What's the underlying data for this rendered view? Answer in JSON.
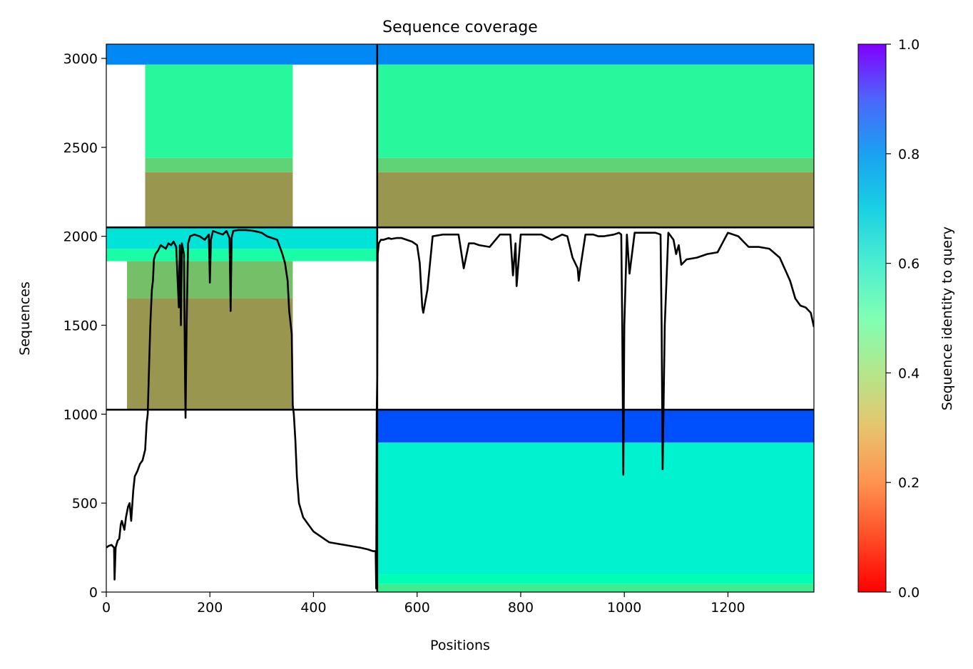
{
  "chart_data": {
    "type": "heatmap",
    "title": "Sequence coverage",
    "xlabel": "Positions",
    "ylabel": "Sequences",
    "xlim": [
      0,
      1366
    ],
    "ylim": [
      0,
      3080
    ],
    "x_ticks": [
      {
        "value": 0,
        "label": "0"
      },
      {
        "value": 200,
        "label": "200"
      },
      {
        "value": 400,
        "label": "400"
      },
      {
        "value": 600,
        "label": "600"
      },
      {
        "value": 800,
        "label": "800"
      },
      {
        "value": 1000,
        "label": "1000"
      },
      {
        "value": 1200,
        "label": "1200"
      }
    ],
    "y_ticks": [
      {
        "value": 0,
        "label": "0"
      },
      {
        "value": 500,
        "label": "500"
      },
      {
        "value": 1000,
        "label": "1000"
      },
      {
        "value": 1500,
        "label": "1500"
      },
      {
        "value": 2000,
        "label": "2000"
      },
      {
        "value": 2500,
        "label": "2500"
      },
      {
        "value": 3000,
        "label": "3000"
      }
    ],
    "colorbar": {
      "label": "Sequence identity to query",
      "range": [
        0,
        1
      ],
      "colormap": "rainbow_r",
      "ticks": [
        {
          "value": 0.0,
          "label": "0.0"
        },
        {
          "value": 0.2,
          "label": "0.2"
        },
        {
          "value": 0.4,
          "label": "0.4"
        },
        {
          "value": 0.6,
          "label": "0.6"
        },
        {
          "value": 0.8,
          "label": "0.8"
        },
        {
          "value": 1.0,
          "label": "1.0"
        }
      ]
    },
    "block_divisions": {
      "x": [
        523
      ],
      "y": [
        1025,
        2050
      ]
    },
    "coverage_blocks": [
      {
        "x": [
          0,
          523
        ],
        "y": [
          2965,
          3080
        ],
        "identity": 0.82,
        "note": "sparse-left"
      },
      {
        "x": [
          523,
          1366
        ],
        "y": [
          2965,
          3080
        ],
        "identity": 0.82
      },
      {
        "x": [
          523,
          1366
        ],
        "y": [
          2440,
          2965
        ],
        "identity": 0.42
      },
      {
        "x": [
          523,
          1366
        ],
        "y": [
          2360,
          2440
        ],
        "identity": 0.31
      },
      {
        "x": [
          523,
          1366
        ],
        "y": [
          2050,
          2360
        ],
        "identity": 0.2
      },
      {
        "x": [
          75,
          360
        ],
        "y": [
          2440,
          2965
        ],
        "identity": 0.42
      },
      {
        "x": [
          75,
          360
        ],
        "y": [
          2360,
          2440
        ],
        "identity": 0.31
      },
      {
        "x": [
          75,
          360
        ],
        "y": [
          2050,
          2360
        ],
        "identity": 0.2
      },
      {
        "x": [
          0,
          523
        ],
        "y": [
          1930,
          2050
        ],
        "identity": 0.65
      },
      {
        "x": [
          0,
          523
        ],
        "y": [
          1860,
          1930
        ],
        "identity": 0.45
      },
      {
        "x": [
          40,
          360
        ],
        "y": [
          1650,
          1860
        ],
        "identity": 0.27
      },
      {
        "x": [
          40,
          360
        ],
        "y": [
          1025,
          1650
        ],
        "identity": 0.2
      },
      {
        "x": [
          523,
          1366
        ],
        "y": [
          840,
          1025
        ],
        "identity": 0.9
      },
      {
        "x": [
          523,
          1366
        ],
        "y": [
          100,
          840
        ],
        "identity": 0.6
      },
      {
        "x": [
          523,
          1366
        ],
        "y": [
          45,
          100
        ],
        "identity": 0.5
      },
      {
        "x": [
          523,
          1366
        ],
        "y": [
          0,
          45
        ],
        "identity": 0.38
      }
    ],
    "coverage_line": {
      "x": [
        0,
        5,
        10,
        15,
        16,
        18,
        20,
        22,
        25,
        28,
        30,
        35,
        38,
        42,
        45,
        48,
        52,
        55,
        60,
        65,
        70,
        75,
        78,
        80,
        82,
        85,
        88,
        90,
        92,
        95,
        100,
        105,
        110,
        115,
        120,
        125,
        130,
        135,
        140,
        142,
        144,
        146,
        150,
        152,
        153,
        155,
        158,
        162,
        170,
        180,
        190,
        198,
        200,
        202,
        206,
        215,
        225,
        232,
        238,
        240,
        242,
        245,
        255,
        270,
        285,
        300,
        310,
        320,
        330,
        340,
        345,
        350,
        353,
        355,
        358,
        360,
        362,
        365,
        368,
        372,
        380,
        390,
        400,
        415,
        430,
        450,
        470,
        490,
        505,
        515,
        520,
        521,
        522,
        523,
        524,
        526,
        530,
        535,
        540,
        545,
        550,
        560,
        570,
        580,
        590,
        600,
        605,
        610,
        612,
        615,
        620,
        630,
        650,
        680,
        690,
        700,
        710,
        720,
        740,
        760,
        780,
        785,
        790,
        792,
        800,
        820,
        840,
        860,
        880,
        890,
        900,
        910,
        912,
        915,
        925,
        940,
        950,
        960,
        980,
        990,
        994,
        996,
        998,
        1000,
        1005,
        1010,
        1020,
        1040,
        1060,
        1070,
        1072,
        1074,
        1078,
        1085,
        1095,
        1100,
        1105,
        1110,
        1120,
        1140,
        1160,
        1180,
        1200,
        1220,
        1240,
        1260,
        1280,
        1300,
        1320,
        1330,
        1340,
        1350,
        1360,
        1366
      ],
      "y": [
        250,
        260,
        265,
        250,
        70,
        250,
        270,
        290,
        300,
        380,
        400,
        350,
        420,
        480,
        500,
        400,
        570,
        650,
        680,
        720,
        740,
        800,
        950,
        1000,
        1200,
        1500,
        1700,
        1750,
        1870,
        1900,
        1920,
        1950,
        1940,
        1930,
        1960,
        1950,
        1970,
        1940,
        1600,
        1950,
        1500,
        1960,
        1900,
        1200,
        980,
        1500,
        1960,
        2000,
        2010,
        2000,
        1980,
        2010,
        1740,
        1980,
        2030,
        2020,
        2010,
        2030,
        1990,
        1580,
        1990,
        2030,
        2035,
        2035,
        2030,
        2020,
        2000,
        1990,
        1980,
        1900,
        1850,
        1750,
        1580,
        1530,
        1450,
        1050,
        1000,
        850,
        650,
        500,
        420,
        380,
        340,
        310,
        280,
        270,
        260,
        250,
        240,
        230,
        230,
        20,
        1000,
        1200,
        1900,
        1960,
        1980,
        1980,
        1985,
        1990,
        1985,
        1990,
        1990,
        1980,
        1970,
        1950,
        1850,
        1600,
        1570,
        1620,
        1700,
        2000,
        2010,
        2010,
        1820,
        1960,
        1960,
        1950,
        1940,
        2010,
        2010,
        1780,
        1960,
        1720,
        2010,
        2010,
        2010,
        1980,
        2010,
        2000,
        1880,
        1820,
        1750,
        1820,
        2010,
        2010,
        2000,
        2000,
        2010,
        2020,
        2010,
        1500,
        660,
        1500,
        2010,
        1790,
        2020,
        2020,
        2020,
        2010,
        1500,
        690,
        1500,
        2020,
        1980,
        1900,
        1950,
        1840,
        1870,
        1880,
        1900,
        1910,
        2020,
        2000,
        1940,
        1940,
        1930,
        1880,
        1750,
        1650,
        1610,
        1600,
        1570,
        1490
      ]
    }
  }
}
